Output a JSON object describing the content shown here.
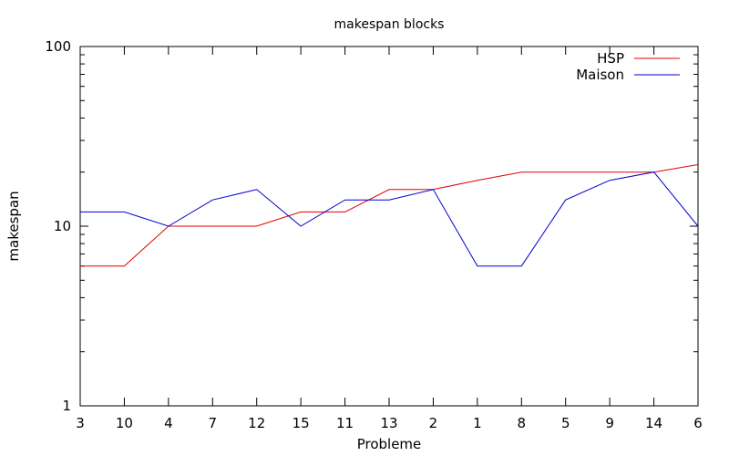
{
  "chart_data": {
    "type": "line",
    "title": "makespan blocks",
    "xlabel": "Probleme",
    "ylabel": "makespan",
    "y_scale": "log",
    "ylim": [
      1,
      100
    ],
    "y_ticks": [
      1,
      10,
      100
    ],
    "y_tick_labels": [
      "1",
      "10",
      "100"
    ],
    "grid": false,
    "legend_position": "top-right",
    "categories": [
      "3",
      "10",
      "4",
      "7",
      "12",
      "15",
      "11",
      "13",
      "2",
      "1",
      "8",
      "5",
      "9",
      "14",
      "6"
    ],
    "series": [
      {
        "name": "HSP",
        "color": "#e00000",
        "values": [
          6,
          6,
          10,
          10,
          10,
          12,
          12,
          16,
          16,
          18,
          20,
          20,
          20,
          20,
          22
        ]
      },
      {
        "name": "Maison",
        "color": "#0000cc",
        "values": [
          12,
          12,
          10,
          14,
          16,
          10,
          14,
          14,
          16,
          6,
          6,
          14,
          18,
          20,
          10
        ]
      }
    ]
  }
}
